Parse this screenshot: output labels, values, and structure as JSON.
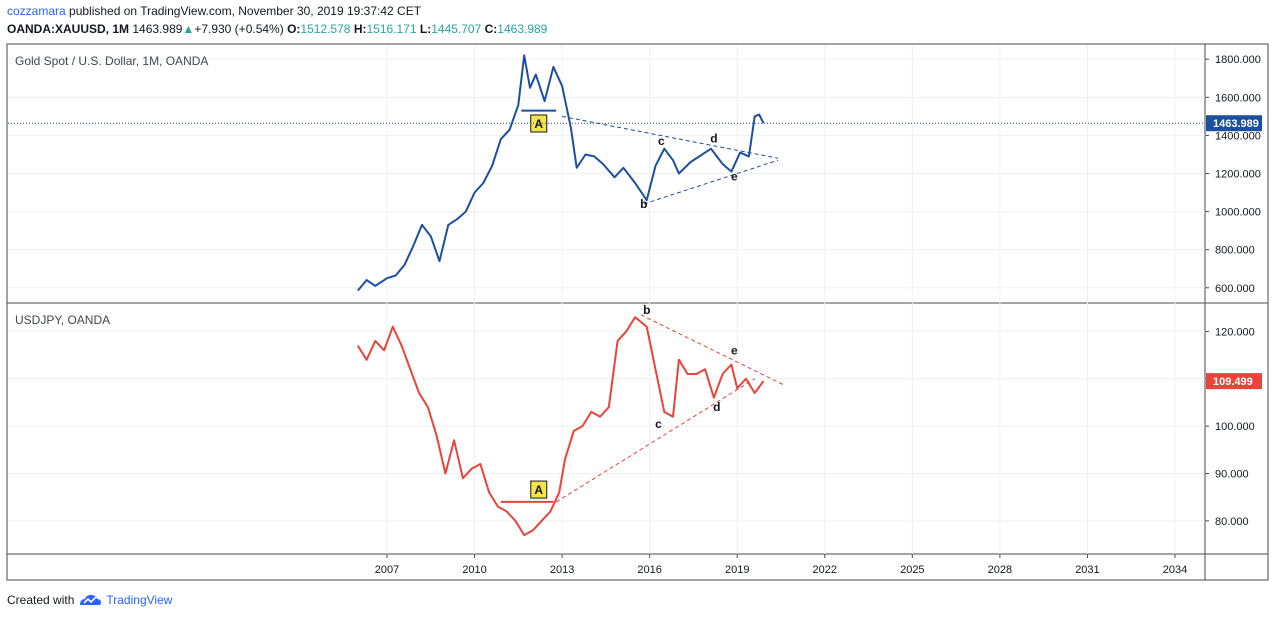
{
  "header": {
    "user": "cozzamara",
    "published": "published on TradingView.com, November 30, 2019 19:37:42 CET",
    "symbol": "OANDA:XAUUSD, 1M",
    "last": "1463.989",
    "arrow": "▲",
    "change": "+7.930 (+0.54%)",
    "o_label": "O:",
    "o_value": "1512.578",
    "h_label": "H:",
    "h_value": "1516.171",
    "l_label": "L:",
    "l_value": "1445.707",
    "c_label": "C:",
    "c_value": "1463.989"
  },
  "footer": {
    "created_with": "Created with",
    "brand": "TradingView"
  },
  "colors": {
    "gold_line": "#1c4fa0",
    "jpy_line": "#e8443a",
    "accent_blue": "#2962ff",
    "up_green": "#26a69a",
    "grid": "#eef0f3",
    "label_badge": "#f5e34a"
  },
  "chart_data": [
    {
      "type": "line",
      "title": "Gold Spot / U.S. Dollar, 1M, OANDA",
      "ylim": [
        520,
        1880
      ],
      "yticks": [
        "600.000",
        "800.000",
        "1000.000",
        "1200.000",
        "1400.000",
        "1600.000",
        "1800.000"
      ],
      "ytick_values": [
        600,
        800,
        1000,
        1200,
        1400,
        1600,
        1800
      ],
      "last_value_label": "1463.989",
      "last_value": 1463.989,
      "series": [
        {
          "x": [
            2006.0,
            2006.3,
            2006.6,
            2007.0,
            2007.3,
            2007.6,
            2007.9,
            2008.2,
            2008.5,
            2008.8,
            2009.1,
            2009.4,
            2009.7,
            2010.0,
            2010.3,
            2010.6,
            2010.9,
            2011.2,
            2011.5,
            2011.7,
            2011.9,
            2012.1,
            2012.4,
            2012.7,
            2013.0,
            2013.3,
            2013.5,
            2013.8,
            2014.1,
            2014.4,
            2014.8,
            2015.1,
            2015.5,
            2015.9,
            2016.2,
            2016.5,
            2016.8,
            2017.0,
            2017.4,
            2017.7,
            2018.1,
            2018.5,
            2018.8,
            2019.1,
            2019.4,
            2019.6,
            2019.75,
            2019.9
          ],
          "values": [
            585,
            640,
            610,
            650,
            665,
            720,
            820,
            930,
            870,
            740,
            930,
            960,
            1000,
            1100,
            1150,
            1240,
            1380,
            1430,
            1560,
            1820,
            1650,
            1720,
            1580,
            1760,
            1660,
            1440,
            1230,
            1300,
            1290,
            1250,
            1180,
            1230,
            1150,
            1060,
            1240,
            1330,
            1270,
            1200,
            1260,
            1290,
            1330,
            1250,
            1210,
            1310,
            1290,
            1500,
            1510,
            1464
          ]
        }
      ],
      "annotations": {
        "wave_labels": [
          {
            "text": "b",
            "x": 2015.8,
            "y": 1040
          },
          {
            "text": "c",
            "x": 2016.4,
            "y": 1370
          },
          {
            "text": "d",
            "x": 2018.2,
            "y": 1385
          },
          {
            "text": "e",
            "x": 2018.9,
            "y": 1185
          }
        ],
        "badge": {
          "text": "A",
          "x": 2012.2,
          "y": 1460
        },
        "hline": {
          "x1": 2011.6,
          "x2": 2012.8,
          "y": 1530
        },
        "trend_upper": {
          "x1": 2013.0,
          "y1": 1500,
          "x2": 2020.4,
          "y2": 1280
        },
        "trend_lower": {
          "x1": 2015.8,
          "y1": 1040,
          "x2": 2020.4,
          "y2": 1270
        }
      }
    },
    {
      "type": "line",
      "title": "USDJPY, OANDA",
      "ylim": [
        73,
        126
      ],
      "yticks": [
        "80.000",
        "90.000",
        "100.000",
        "110.000",
        "120.000"
      ],
      "ytick_values": [
        80,
        90,
        100,
        110,
        120
      ],
      "last_value_label": "109.499",
      "last_value": 109.499,
      "series": [
        {
          "x": [
            2006.0,
            2006.3,
            2006.6,
            2006.9,
            2007.2,
            2007.5,
            2007.8,
            2008.1,
            2008.4,
            2008.7,
            2009.0,
            2009.3,
            2009.6,
            2009.9,
            2010.2,
            2010.5,
            2010.8,
            2011.1,
            2011.4,
            2011.7,
            2012.0,
            2012.3,
            2012.6,
            2012.9,
            2013.1,
            2013.4,
            2013.7,
            2014.0,
            2014.3,
            2014.6,
            2014.9,
            2015.2,
            2015.5,
            2015.9,
            2016.2,
            2016.5,
            2016.8,
            2017.0,
            2017.3,
            2017.6,
            2017.9,
            2018.2,
            2018.5,
            2018.8,
            2019.0,
            2019.3,
            2019.6,
            2019.9
          ],
          "values": [
            117,
            114,
            118,
            116,
            121,
            117,
            112,
            107,
            104,
            98,
            90,
            97,
            89,
            91,
            92,
            86,
            83,
            82,
            80,
            77,
            78,
            80,
            82,
            86,
            93,
            99,
            100,
            103,
            102,
            104,
            118,
            120,
            123,
            121,
            112,
            103,
            102,
            114,
            111,
            111,
            112,
            106,
            111,
            113,
            108,
            110,
            107,
            109.5
          ]
        }
      ],
      "annotations": {
        "wave_labels": [
          {
            "text": "b",
            "x": 2015.9,
            "y": 124.5
          },
          {
            "text": "c",
            "x": 2016.3,
            "y": 100.5
          },
          {
            "text": "d",
            "x": 2018.3,
            "y": 104
          },
          {
            "text": "e",
            "x": 2018.9,
            "y": 116
          }
        ],
        "badge": {
          "text": "A",
          "x": 2012.2,
          "y": 86.5
        },
        "hline": {
          "x1": 2010.9,
          "x2": 2012.7,
          "y": 84
        },
        "trend_upper": {
          "x1": 2015.7,
          "y1": 123.5,
          "x2": 2020.6,
          "y2": 108.7
        },
        "trend_lower": {
          "x1": 2012.8,
          "y1": 84,
          "x2": 2019.6,
          "y2": 110
        }
      }
    }
  ],
  "time_axis": {
    "labels": [
      "2007",
      "2010",
      "2013",
      "2016",
      "2019",
      "2022",
      "2025",
      "2028",
      "2031",
      "2034"
    ],
    "values": [
      2007,
      2010,
      2013,
      2016,
      2019,
      2022,
      2025,
      2028,
      2031,
      2034
    ]
  }
}
